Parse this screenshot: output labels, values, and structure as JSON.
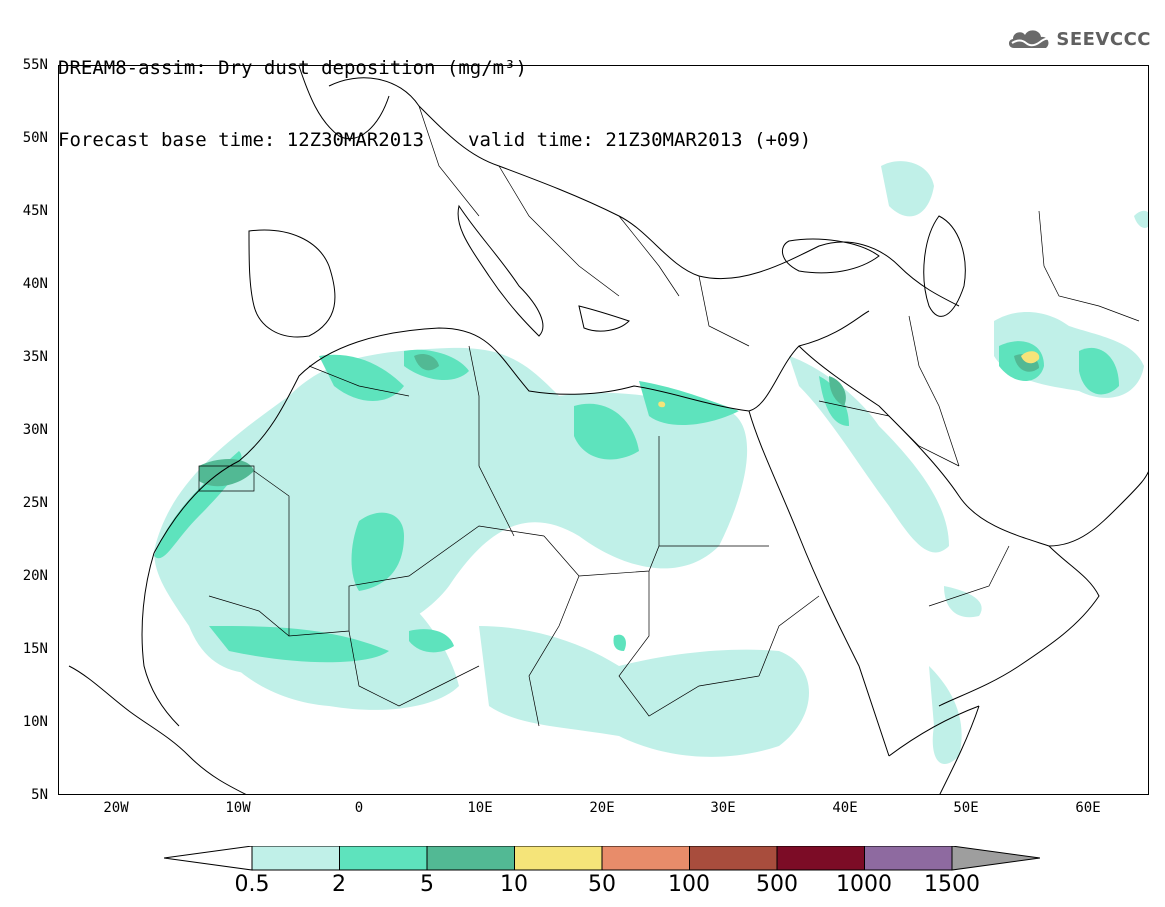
{
  "title": {
    "line1": "DREAM8-assim: Dry dust deposition (mg/m³)",
    "base_time": "Forecast base time: 12Z30MAR2013",
    "valid_time": "valid time: 21Z30MAR2013 (+09)"
  },
  "logo": {
    "text": "SEEVCCC",
    "icon": "cloud-logo-icon"
  },
  "axes": {
    "lat_labels": [
      "55N",
      "50N",
      "45N",
      "40N",
      "35N",
      "30N",
      "25N",
      "20N",
      "15N",
      "10N",
      "5N"
    ],
    "lon_labels": [
      "20W",
      "10W",
      "0",
      "10E",
      "20E",
      "30E",
      "40E",
      "50E",
      "60E"
    ]
  },
  "colorbar": {
    "labels": [
      "0.5",
      "2",
      "5",
      "10",
      "50",
      "100",
      "500",
      "1000",
      "1500"
    ],
    "colors": [
      "#c0f0e8",
      "#5ee3bd",
      "#52b994",
      "#f5e479",
      "#e88c6a",
      "#a84d3d",
      "#7c0c26",
      "#8e6aa0"
    ],
    "under_color": "#ffffff",
    "over_color": "#9e9e9e"
  }
}
